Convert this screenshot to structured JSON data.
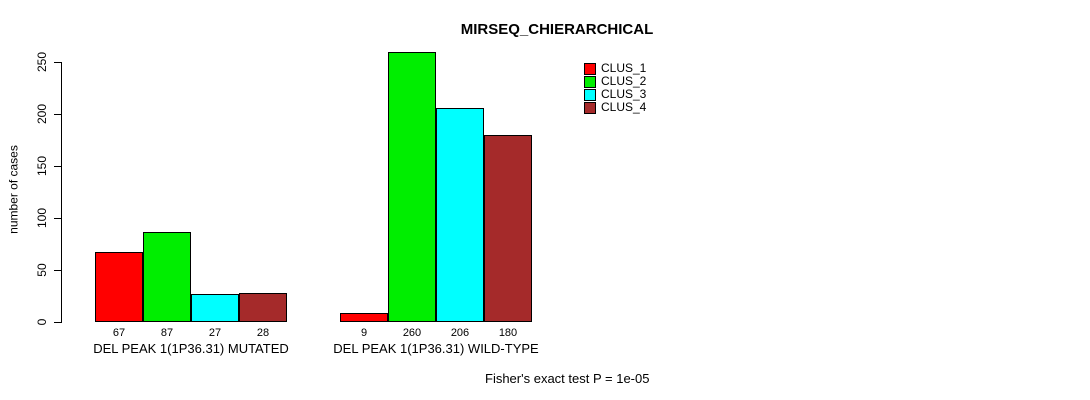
{
  "chart_data": {
    "type": "bar",
    "title": "MIRSEQ_CHIERARCHICAL",
    "xlabel": "",
    "ylabel": "number of cases",
    "ylim": [
      0,
      260
    ],
    "yticks": [
      0,
      50,
      100,
      150,
      200,
      250
    ],
    "grid": false,
    "legend_position": "top-right",
    "categories": [
      "DEL PEAK 1(1P36.31) MUTATED",
      "DEL PEAK 1(1P36.31) WILD-TYPE"
    ],
    "series": [
      {
        "name": "CLUS_1",
        "color": "#FF0000",
        "values": [
          67,
          9
        ]
      },
      {
        "name": "CLUS_2",
        "color": "#00EE00",
        "values": [
          87,
          260
        ]
      },
      {
        "name": "CLUS_3",
        "color": "#00FFFF",
        "values": [
          27,
          206
        ]
      },
      {
        "name": "CLUS_4",
        "color": "#A52A2A",
        "values": [
          28,
          180
        ]
      }
    ],
    "bar_value_labels": true,
    "annotation": "Fisher's exact test P = 1e-05"
  }
}
